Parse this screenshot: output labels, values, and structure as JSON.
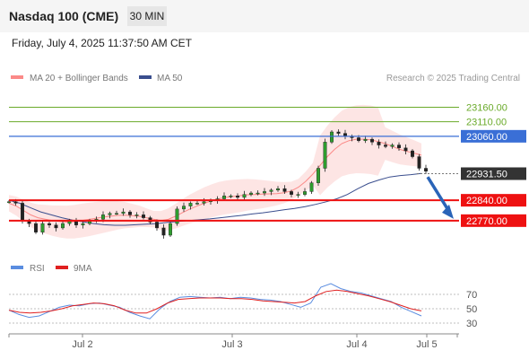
{
  "header": {
    "title": "Nasdaq 100 (CME)",
    "timeframe": "30 MIN",
    "datetime": "Friday, July 4, 2025 11:37:50 AM CET"
  },
  "legend": {
    "bb": "MA 20 + Bollinger Bands",
    "ma50": "MA 50",
    "credit": "Research © 2025 Trading Central"
  },
  "rsi_legend": {
    "rsi": "RSI",
    "ma9": "9MA"
  },
  "colors": {
    "resistance": "#6aaa2a",
    "pivot": "#3a6fd6",
    "price": "#333333",
    "support": "#ee1111",
    "arrow": "#2a64b8",
    "bb": "#fb8a88",
    "ma50": "#3a4e8e",
    "rsi": "#5a8de0",
    "ma9": "#e02020"
  },
  "chart_data": {
    "type": "line",
    "title": "Nasdaq 100 (CME)",
    "timeframe": "30 MIN",
    "x_tick_labels": [
      "Jul 2",
      "Jul 3",
      "Jul 4",
      "Jul 5"
    ],
    "y_range": [
      22680,
      23220
    ],
    "levels": [
      {
        "label": "23160.00",
        "value": 23160,
        "kind": "resistance"
      },
      {
        "label": "23110.00",
        "value": 23110,
        "kind": "resistance"
      },
      {
        "label": "23060.00",
        "value": 23060,
        "kind": "pivot"
      },
      {
        "label": "22931.50",
        "value": 22931.5,
        "kind": "last-price"
      },
      {
        "label": "22840.00",
        "value": 22840,
        "kind": "support"
      },
      {
        "label": "22770.00",
        "value": 22770,
        "kind": "support"
      }
    ],
    "series": [
      {
        "name": "price",
        "values": [
          22835,
          22830,
          22770,
          22760,
          22730,
          22760,
          22755,
          22745,
          22760,
          22770,
          22755,
          22760,
          22770,
          22775,
          22790,
          22795,
          22795,
          22800,
          22790,
          22790,
          22780,
          22765,
          22745,
          22720,
          22760,
          22810,
          22820,
          22830,
          22830,
          22835,
          22840,
          22845,
          22855,
          22855,
          22850,
          22860,
          22865,
          22865,
          22870,
          22875,
          22880,
          22870,
          22860,
          22860,
          22870,
          22900,
          22950,
          23040,
          23075,
          23070,
          23060,
          23055,
          23045,
          23050,
          23040,
          23030,
          23025,
          23030,
          23020,
          23010,
          22990,
          22950,
          22940
        ]
      },
      {
        "name": "MA 20",
        "values": [
          22830,
          22820,
          22805,
          22790,
          22780,
          22775,
          22770,
          22767,
          22765,
          22766,
          22770,
          22774,
          22778,
          22782,
          22785,
          22788,
          22789,
          22787,
          22785,
          22780,
          22775,
          22770,
          22774,
          22785,
          22798,
          22810,
          22820,
          22830,
          22838,
          22845,
          22850,
          22853,
          22856,
          22859,
          22860,
          22861,
          22862,
          22863,
          22866,
          22872,
          22885,
          22905,
          22930,
          22960,
          22990,
          23015,
          23035,
          23045,
          23050,
          23050,
          23048,
          23042,
          23035,
          23025,
          23015,
          23008,
          23002,
          22995
        ]
      },
      {
        "name": "MA 50",
        "values": [
          22840,
          22830,
          22815,
          22800,
          22790,
          22780,
          22772,
          22766,
          22760,
          22756,
          22754,
          22754,
          22756,
          22758,
          22760,
          22764,
          22767,
          22770,
          22773,
          22776,
          22780,
          22784,
          22788,
          22793,
          22797,
          22802,
          22807,
          22812,
          22818,
          22826,
          22835,
          22845,
          22860,
          22880,
          22898,
          22910,
          22920,
          22925,
          22928,
          22932
        ]
      },
      {
        "name": "RSI",
        "values": [
          48,
          42,
          38,
          40,
          46,
          52,
          55,
          54,
          57,
          58,
          55,
          52,
          45,
          40,
          36,
          50,
          60,
          66,
          67,
          66,
          65,
          66,
          64,
          66,
          65,
          63,
          62,
          60,
          56,
          52,
          58,
          80,
          85,
          78,
          74,
          72,
          68,
          64,
          60,
          52,
          46,
          40
        ]
      },
      {
        "name": "9MA",
        "values": [
          48,
          45,
          44,
          45,
          47,
          50,
          54,
          56,
          58,
          57,
          54,
          48,
          44,
          44,
          50,
          58,
          63,
          64,
          65,
          65,
          65,
          64,
          64,
          63,
          61,
          60,
          59,
          58,
          60,
          68,
          74,
          76,
          74,
          71,
          68,
          64,
          60,
          55,
          50,
          47
        ]
      }
    ],
    "rsi_levels": [
      70,
      50,
      30
    ]
  }
}
